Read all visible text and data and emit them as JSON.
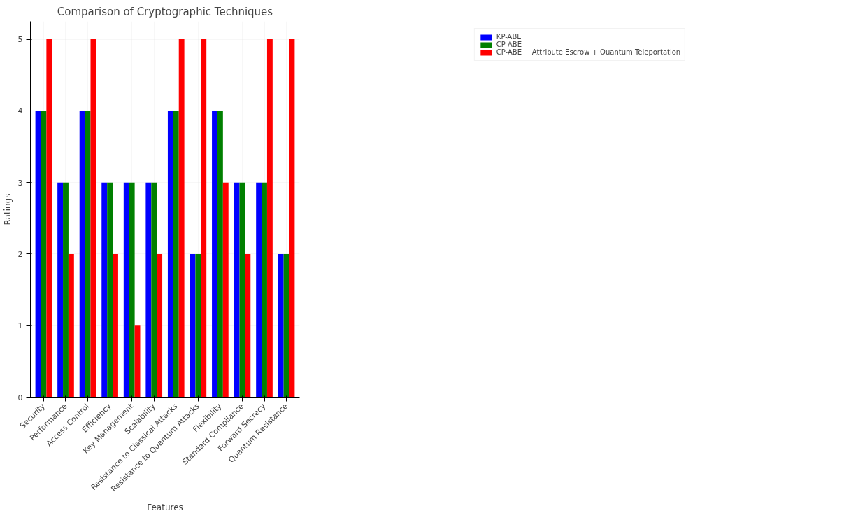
{
  "chart_data": {
    "type": "bar",
    "title": "Comparison of Cryptographic Techniques",
    "xlabel": "Features",
    "ylabel": "Ratings",
    "categories": [
      "Security",
      "Performance",
      "Access Control",
      "Efficiency",
      "Key Management",
      "Scalability",
      "Resistance to Classical Attacks",
      "Resistance to Quantum Attacks",
      "Flexibility",
      "Standard Compliance",
      "Forward Secrecy",
      "Quantum Resistance"
    ],
    "series": [
      {
        "name": "KP-ABE",
        "color": "#0000ff",
        "values": [
          4,
          3,
          4,
          3,
          3,
          3,
          4,
          2,
          4,
          3,
          3,
          2
        ]
      },
      {
        "name": "CP-ABE",
        "color": "#008000",
        "values": [
          4,
          3,
          4,
          3,
          3,
          3,
          4,
          2,
          4,
          3,
          3,
          2
        ]
      },
      {
        "name": "CP-ABE + Attribute Escrow + Quantum Teleportation",
        "color": "#ff0000",
        "values": [
          5,
          2,
          5,
          2,
          1,
          2,
          5,
          5,
          3,
          2,
          5,
          5
        ]
      }
    ],
    "ylim": [
      0,
      5.25
    ],
    "yticks": [
      0,
      1,
      2,
      3,
      4,
      5
    ],
    "grid": true,
    "legend": "top right"
  }
}
